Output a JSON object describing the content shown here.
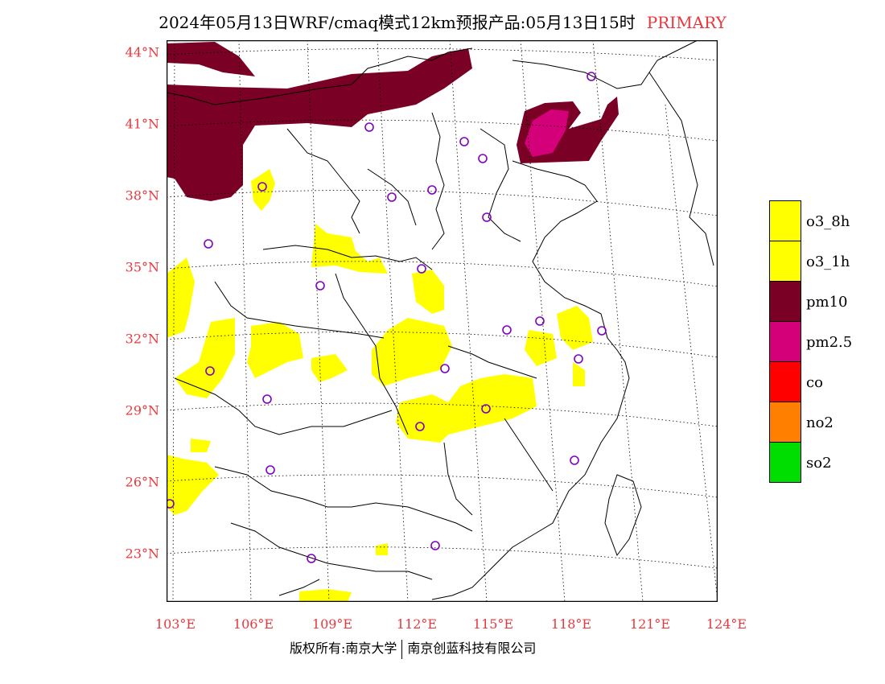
{
  "title": {
    "main": "2024年05月13日WRF/cmaq模式12km预报产品:05月13日15时",
    "tag": "PRIMARY"
  },
  "lat_labels": [
    "44°N",
    "41°N",
    "38°N",
    "35°N",
    "32°N",
    "29°N",
    "26°N",
    "23°N"
  ],
  "lon_labels": [
    "103°E",
    "106°E",
    "109°E",
    "112°E",
    "115°E",
    "118°E",
    "121°E",
    "124°E"
  ],
  "legend": [
    {
      "label": "o3_8h",
      "color": "#ffff00"
    },
    {
      "label": "o3_1h",
      "color": "#ffff00"
    },
    {
      "label": "pm10",
      "color": "#7a0026"
    },
    {
      "label": "pm2.5",
      "color": "#d4007a"
    },
    {
      "label": "co",
      "color": "#ff0000"
    },
    {
      "label": "no2",
      "color": "#ff8000"
    },
    {
      "label": "so2",
      "color": "#00dd00"
    }
  ],
  "footer": {
    "left": "版权所有:南京大学",
    "right": "南京创蓝科技有限公司"
  },
  "colors": {
    "label_red": "#e8383d",
    "station_marker": "#8000c0"
  }
}
